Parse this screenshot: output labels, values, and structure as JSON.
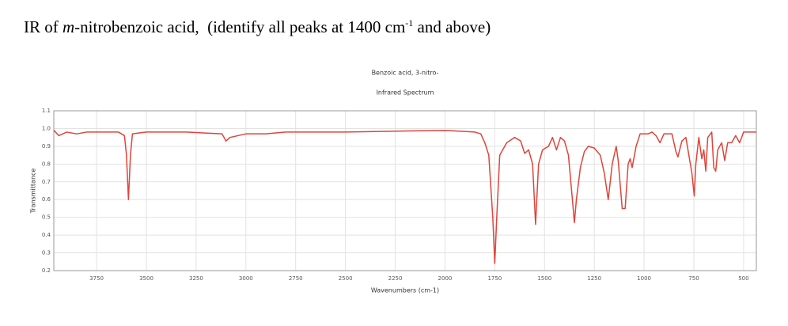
{
  "heading": {
    "prefix": "IR of ",
    "italic": "m",
    "middle": "-nitrobenzoic acid,  (identify all peaks at 1400 cm",
    "superscript": "-1",
    "suffix": " and above)"
  },
  "chart_data": {
    "type": "line",
    "title": "Benzoic acid, 3-nitro-",
    "subtitle": "Infrared Spectrum",
    "xlabel": "Wavenumbers (cm-1)",
    "ylabel": "Transmittance",
    "color": "#e0443a",
    "grid": true,
    "xlim": [
      3965,
      436
    ],
    "ylim": [
      0.2,
      1.1
    ],
    "xticks": [
      3750,
      3500,
      3250,
      3000,
      2750,
      2500,
      2250,
      2000,
      1750,
      1500,
      1250,
      1000,
      750,
      500
    ],
    "yticks": [
      0.2,
      0.3,
      0.4,
      0.5,
      0.6,
      0.7,
      0.8,
      0.9,
      {
        "value": 1,
        "label": "1.0"
      },
      1.1
    ],
    "x": [
      3965,
      3940,
      3900,
      3850,
      3800,
      3700,
      3640,
      3610,
      3600,
      3590,
      3580,
      3570,
      3500,
      3300,
      3120,
      3100,
      3080,
      3000,
      2900,
      2800,
      2500,
      2000,
      1850,
      1820,
      1800,
      1780,
      1760,
      1750,
      1740,
      1725,
      1710,
      1690,
      1650,
      1620,
      1600,
      1580,
      1560,
      1545,
      1530,
      1510,
      1480,
      1460,
      1440,
      1420,
      1400,
      1380,
      1360,
      1350,
      1340,
      1320,
      1300,
      1280,
      1250,
      1220,
      1200,
      1180,
      1160,
      1140,
      1130,
      1110,
      1095,
      1080,
      1070,
      1060,
      1040,
      1020,
      980,
      960,
      940,
      920,
      900,
      860,
      840,
      830,
      810,
      790,
      775,
      760,
      748,
      740,
      725,
      710,
      700,
      690,
      680,
      660,
      650,
      640,
      630,
      610,
      595,
      580,
      560,
      540,
      520,
      500,
      480,
      436
    ],
    "values": [
      0.99,
      0.96,
      0.98,
      0.97,
      0.98,
      0.98,
      0.98,
      0.96,
      0.85,
      0.6,
      0.85,
      0.97,
      0.98,
      0.98,
      0.97,
      0.93,
      0.95,
      0.97,
      0.97,
      0.98,
      0.98,
      0.99,
      0.98,
      0.97,
      0.92,
      0.85,
      0.5,
      0.24,
      0.5,
      0.85,
      0.88,
      0.92,
      0.95,
      0.93,
      0.86,
      0.88,
      0.8,
      0.46,
      0.8,
      0.88,
      0.9,
      0.95,
      0.88,
      0.95,
      0.93,
      0.85,
      0.6,
      0.47,
      0.6,
      0.78,
      0.87,
      0.9,
      0.89,
      0.85,
      0.75,
      0.6,
      0.8,
      0.9,
      0.82,
      0.55,
      0.55,
      0.8,
      0.83,
      0.78,
      0.9,
      0.97,
      0.97,
      0.98,
      0.96,
      0.92,
      0.97,
      0.97,
      0.87,
      0.84,
      0.93,
      0.95,
      0.85,
      0.75,
      0.62,
      0.8,
      0.95,
      0.83,
      0.88,
      0.76,
      0.95,
      0.98,
      0.78,
      0.76,
      0.88,
      0.92,
      0.82,
      0.92,
      0.92,
      0.96,
      0.92,
      0.98,
      0.98,
      0.98
    ]
  }
}
